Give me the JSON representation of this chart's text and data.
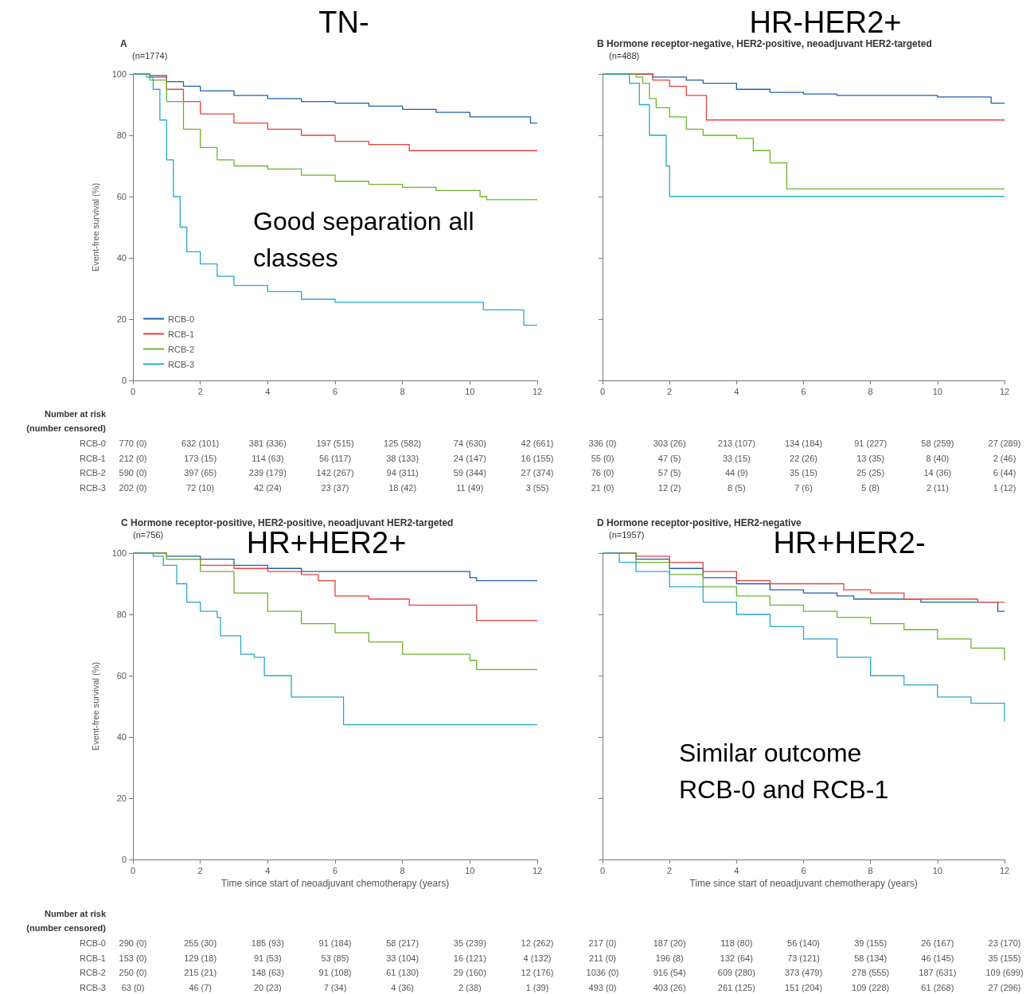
{
  "chart_data": [
    {
      "type": "step",
      "title": "TN-",
      "subtitle": "A",
      "ylabel": "Event-free survival (%)",
      "xlim": [
        0,
        12
      ],
      "xticks": [
        0,
        2,
        4,
        6,
        8,
        10,
        12
      ],
      "ylim": [
        0,
        100
      ],
      "yticks": [
        0,
        20,
        40,
        60,
        80,
        100
      ],
      "legend": "bottom left",
      "annotations": [
        "(n=1774)",
        "Good separation all classes",
        "Number at risk",
        "(number censored)",
        "RCB-0 770 (0) 632 (101) 381 (336) 197 (515) 125 (582) 74 (630) 42 (661)",
        "RCB-1 212 (0) 173 (15) 114 (63) 56 (117) 38 (133) 24 (147) 16 (155)",
        "RCB-2 590 (0) 397 (65) 239 (179) 142 (267) 94 (311) 59 (344) 27 (374)",
        "RCB-3 202 (0) 72 (10) 42 (24) 23 (37) 18 (42) 11 (49) 3 (55)"
      ],
      "series": [
        {
          "name": "RCB-0",
          "color": "#1f5fa8",
          "x": [
            0,
            0.5,
            1,
            1.5,
            2,
            3,
            4,
            5,
            6,
            7,
            8,
            9,
            10,
            11.7,
            11.8,
            12
          ],
          "values": [
            100,
            99.5,
            97.5,
            96,
            94.5,
            93,
            92,
            91,
            90.5,
            89.5,
            88.5,
            87.5,
            86,
            86,
            84,
            84
          ]
        },
        {
          "name": "RCB-1",
          "color": "#e8413c",
          "x": [
            0,
            0.5,
            1,
            1.5,
            2,
            3,
            4,
            5,
            6,
            7,
            8.2,
            12
          ],
          "values": [
            100,
            99,
            95,
            91,
            87,
            84,
            82,
            80,
            78,
            77,
            75,
            75
          ]
        },
        {
          "name": "RCB-2",
          "color": "#6ab42d",
          "x": [
            0,
            0.5,
            1,
            1.5,
            2,
            2.5,
            3,
            4,
            5,
            6,
            7,
            8,
            9,
            10,
            10.3,
            10.5,
            12
          ],
          "values": [
            100,
            98,
            91,
            82,
            76,
            72,
            70,
            69,
            67,
            65,
            64,
            63,
            62,
            62,
            60,
            59,
            59
          ]
        },
        {
          "name": "RCB-3",
          "color": "#2aa6c8",
          "x": [
            0,
            0.4,
            0.6,
            0.8,
            1,
            1.2,
            1.4,
            1.6,
            2,
            2.5,
            3,
            4,
            5,
            6,
            10.4,
            11.6,
            12
          ],
          "values": [
            100,
            99,
            95,
            85,
            72,
            60,
            50,
            42,
            38,
            34,
            31,
            29,
            26.5,
            25.5,
            23,
            18,
            18
          ]
        }
      ]
    },
    {
      "type": "step",
      "title": "HR-HER2+",
      "subtitle": "B Hormone receptor-negative, HER2-positive, neoadjuvant HER2-targeted",
      "xlim": [
        0,
        12
      ],
      "xticks": [
        0,
        2,
        4,
        6,
        8,
        10,
        12
      ],
      "ylim": [
        0,
        100
      ],
      "yticks": [
        0,
        20,
        40,
        60,
        80,
        100
      ],
      "tick_labels": "x",
      "annotations": [
        "(n=488)",
        "336 (0) 303 (26) 213 (107) 134 (184) 91 (227) 58 (259) 27 (289)",
        "55 (0) 47 (5) 33 (15) 22 (26) 13 (35) 8 (40) 2 (46)",
        "76 (0) 57 (5) 44 (9) 35 (15) 25 (25) 14 (36) 6 (44)",
        "21 (0) 12 (2) 8 (5) 7 (6) 5 (8) 2 (11) 1 (12)"
      ],
      "series": [
        {
          "color": "#1f5fa8",
          "x": [
            0,
            1.5,
            2.5,
            3,
            4,
            5,
            6,
            7,
            10,
            11.6,
            12
          ],
          "values": [
            100,
            99,
            98,
            97,
            95,
            94,
            93.5,
            93,
            92.5,
            90.5,
            90.5
          ]
        },
        {
          "color": "#e8413c",
          "x": [
            0,
            1.5,
            2,
            2.5,
            3.1,
            12
          ],
          "values": [
            100,
            98,
            96,
            93,
            85,
            85
          ]
        },
        {
          "color": "#6ab42d",
          "x": [
            0,
            1,
            1.2,
            1.4,
            1.6,
            2,
            2.5,
            3,
            4,
            4.5,
            5,
            5.5,
            12
          ],
          "values": [
            100,
            99,
            97,
            92,
            89,
            86,
            82,
            80,
            79,
            75,
            71,
            62.5,
            62.5
          ]
        },
        {
          "color": "#2aa6c8",
          "x": [
            0,
            0.8,
            1.1,
            1.4,
            1.9,
            2,
            12
          ],
          "values": [
            100,
            97,
            90,
            80,
            70,
            60,
            60
          ]
        }
      ]
    },
    {
      "type": "step",
      "title": "HR+HER2+",
      "subtitle": "C Hormone receptor-positive, HER2-positive, neoadjuvant HER2-targeted",
      "xlabel": "Time since start of neoadjuvant chemotherapy (years)",
      "ylabel": "Event-free survival (%)",
      "xlim": [
        0,
        12
      ],
      "xticks": [
        0,
        2,
        4,
        6,
        8,
        10,
        12
      ],
      "ylim": [
        0,
        100
      ],
      "yticks": [
        0,
        20,
        40,
        60,
        80,
        100
      ],
      "annotations": [
        "(n=756)",
        "Number at risk",
        "(number censored)",
        "RCB-0 290 (0) 255 (30) 185 (93) 91 (184) 58 (217) 35 (239) 12 (262)",
        "RCB-1 153 (0) 129 (18) 91 (53) 53 (85) 33 (104) 16 (121) 4 (132)",
        "RCB-2 250 (0) 215 (21) 148 (63) 91 (108) 61 (130) 29 (160) 12 (176)",
        "RCB-3 63 (0) 46 (7) 20 (23) 7 (34) 4 (36) 2 (38) 1 (39)"
      ],
      "series": [
        {
          "color": "#1f5fa8",
          "x": [
            0,
            1,
            2,
            3,
            4,
            5,
            9,
            10,
            10.2,
            12
          ],
          "values": [
            100,
            99,
            98,
            96,
            95,
            94,
            94,
            92,
            91,
            91
          ]
        },
        {
          "color": "#e8413c",
          "x": [
            0,
            1,
            2,
            3,
            4,
            5,
            5.5,
            6,
            7,
            8.2,
            10,
            10.2,
            12
          ],
          "values": [
            100,
            98,
            96,
            95,
            94,
            93,
            91,
            86,
            85,
            83,
            83,
            78,
            78
          ]
        },
        {
          "color": "#6ab42d",
          "x": [
            0,
            1,
            2,
            3,
            4,
            5,
            6,
            7,
            8,
            9,
            10,
            10.2,
            12
          ],
          "values": [
            100,
            98,
            94,
            87,
            81,
            77,
            74,
            71,
            67,
            67,
            65,
            62,
            62
          ]
        },
        {
          "color": "#2aa6c8",
          "x": [
            0,
            0.6,
            0.9,
            1.3,
            1.6,
            2,
            2.5,
            2.6,
            3.2,
            3.6,
            3.9,
            4.5,
            4.7,
            6.25,
            12
          ],
          "values": [
            100,
            99,
            96,
            90,
            84,
            81,
            79,
            73,
            67,
            66,
            60,
            60,
            53,
            44,
            44
          ]
        }
      ]
    },
    {
      "type": "step",
      "title": "HR+HER2-",
      "subtitle": "D Hormone receptor-positive, HER2-negative",
      "xlabel": "Time since start of neoadjuvant chemotherapy (years)",
      "xlim": [
        0,
        12
      ],
      "xticks": [
        0,
        2,
        4,
        6,
        8,
        10,
        12
      ],
      "ylim": [
        0,
        100
      ],
      "yticks": [
        0,
        20,
        40,
        60,
        80,
        100
      ],
      "tick_labels": "x",
      "annotations": [
        "(n=1957)",
        "Similar outcome RCB-0 and RCB-1",
        "217 (0) 187 (20) 118 (80) 56 (140) 39 (155) 26 (167) 23 (170)",
        "211 (0) 196 (8) 132 (64) 73 (121) 58 (134) 46 (145) 35 (155)",
        "1036 (0) 916 (54) 609 (280) 373 (479) 278 (555) 187 (631) 109 (699)",
        "493 (0) 403 (26) 261 (125) 151 (204) 109 (228) 61 (268) 27 (296)"
      ],
      "series": [
        {
          "color": "#1f5fa8",
          "x": [
            0,
            1,
            2,
            3,
            4,
            5,
            6,
            7,
            7.5,
            9.5,
            11.8,
            12
          ],
          "values": [
            100,
            98,
            95,
            92,
            90,
            88,
            87,
            86,
            85,
            84,
            81,
            81
          ]
        },
        {
          "color": "#e8413c",
          "x": [
            0,
            1,
            2,
            3,
            4,
            5,
            7.2,
            8,
            9,
            11.2,
            12
          ],
          "values": [
            100,
            99,
            97,
            94,
            91,
            90,
            88,
            87,
            85,
            84,
            84
          ]
        },
        {
          "color": "#6ab42d",
          "x": [
            0,
            1,
            2,
            3,
            4,
            5,
            6,
            7,
            8,
            9,
            10,
            11,
            12
          ],
          "values": [
            100,
            97,
            93,
            89,
            86,
            83,
            81,
            79,
            77,
            75,
            72,
            69,
            65
          ]
        },
        {
          "color": "#2aa6c8",
          "x": [
            0,
            0.5,
            1,
            2,
            3,
            4,
            5,
            6,
            7,
            8,
            9,
            10,
            11,
            12
          ],
          "values": [
            100,
            97,
            94,
            89,
            84,
            80,
            76,
            72,
            66,
            60,
            57,
            53,
            51,
            45
          ]
        }
      ]
    }
  ]
}
